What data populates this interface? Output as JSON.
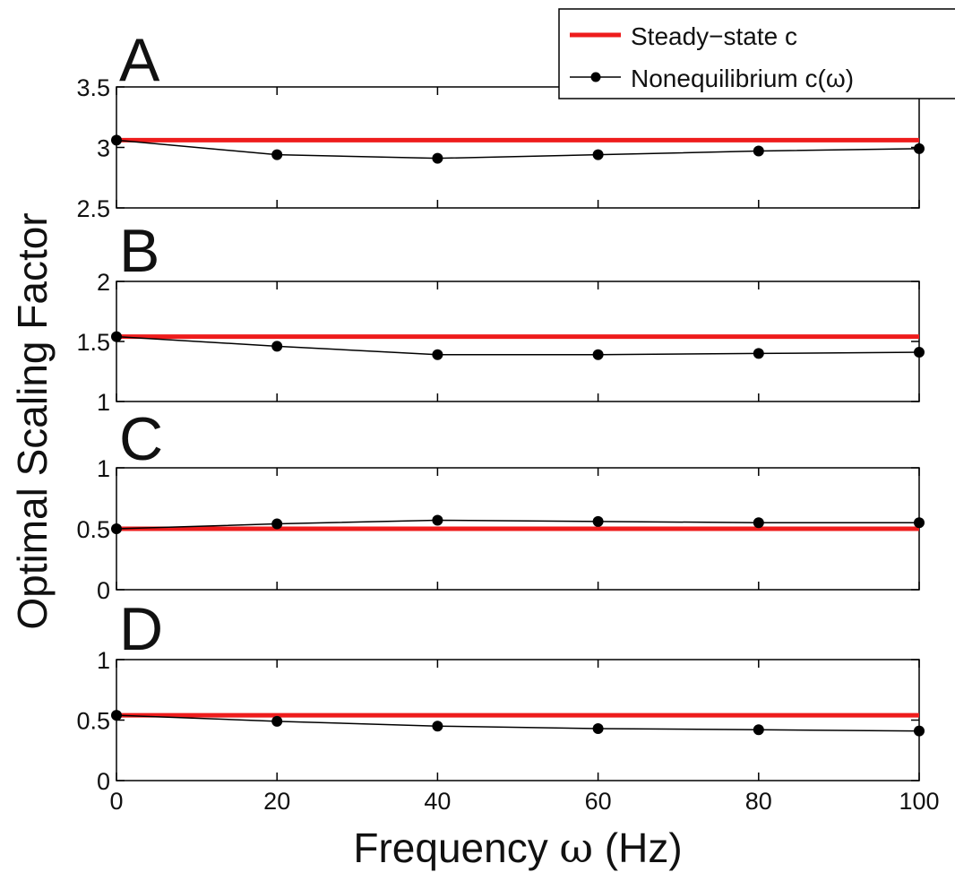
{
  "chart_data": {
    "type": "line",
    "ylabel": "Optimal Scaling Factor",
    "xlabel_text": "Frequency ",
    "xlabel_symbol": "ω",
    "xlabel_unit": " (Hz)",
    "x": [
      0,
      20,
      40,
      60,
      80,
      100
    ],
    "x_ticks": [
      "0",
      "20",
      "40",
      "60",
      "80",
      "100"
    ],
    "xlim": [
      0,
      100
    ],
    "legend": {
      "placement": "top-right",
      "entries": [
        "Steady−state c",
        "Nonequilibrium c(ω)"
      ]
    },
    "colors": {
      "steady": "#ee1c1c",
      "noneq": "#000000"
    },
    "panels": [
      {
        "label": "A",
        "ylim": [
          2.5,
          3.5
        ],
        "y_ticks": [
          "3.5",
          "3",
          "2.5"
        ],
        "y_tick_values": [
          3.5,
          3.0,
          2.5
        ],
        "series": [
          {
            "name": "Steady−state c",
            "values": [
              3.06,
              3.06,
              3.06,
              3.06,
              3.06,
              3.06
            ]
          },
          {
            "name": "Nonequilibrium c(ω)",
            "values": [
              3.06,
              2.94,
              2.91,
              2.94,
              2.97,
              2.99
            ]
          }
        ]
      },
      {
        "label": "B",
        "ylim": [
          1,
          2
        ],
        "y_ticks": [
          "2",
          "1.5",
          "1"
        ],
        "y_tick_values": [
          2.0,
          1.5,
          1.0
        ],
        "series": [
          {
            "name": "Steady−state c",
            "values": [
              1.54,
              1.54,
              1.54,
              1.54,
              1.54,
              1.54
            ]
          },
          {
            "name": "Nonequilibrium c(ω)",
            "values": [
              1.54,
              1.46,
              1.39,
              1.39,
              1.4,
              1.41
            ]
          }
        ]
      },
      {
        "label": "C",
        "ylim": [
          0,
          1
        ],
        "y_ticks": [
          "1",
          "0.5",
          "0"
        ],
        "y_tick_values": [
          1.0,
          0.5,
          0.0
        ],
        "series": [
          {
            "name": "Steady−state c",
            "values": [
              0.5,
              0.5,
              0.5,
              0.5,
              0.5,
              0.5
            ]
          },
          {
            "name": "Nonequilibrium c(ω)",
            "values": [
              0.5,
              0.54,
              0.57,
              0.56,
              0.55,
              0.55
            ]
          }
        ]
      },
      {
        "label": "D",
        "ylim": [
          0,
          1
        ],
        "y_ticks": [
          "1",
          "0.5",
          "0"
        ],
        "y_tick_values": [
          1.0,
          0.5,
          0.0
        ],
        "series": [
          {
            "name": "Steady−state c",
            "values": [
              0.54,
              0.54,
              0.54,
              0.54,
              0.54,
              0.54
            ]
          },
          {
            "name": "Nonequilibrium c(ω)",
            "values": [
              0.54,
              0.49,
              0.45,
              0.43,
              0.42,
              0.41
            ]
          }
        ]
      }
    ]
  }
}
